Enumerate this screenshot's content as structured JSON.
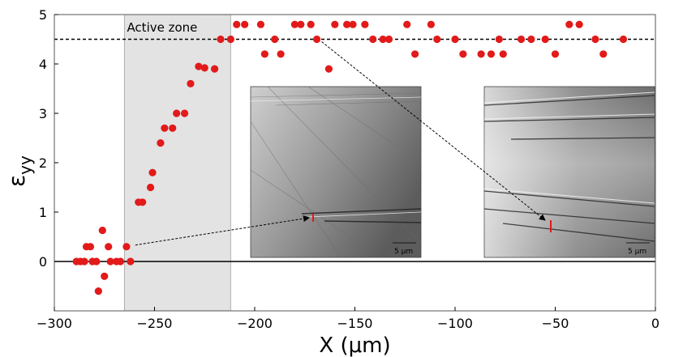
{
  "chart_data": {
    "type": "scatter",
    "xlabel": "X  (μm)",
    "ylabel_main": "ε",
    "ylabel_sub": "yy",
    "xlim": [
      -300,
      0
    ],
    "ylim": [
      -1,
      5
    ],
    "xticks": [
      -300,
      -250,
      -200,
      -150,
      -100,
      -50,
      0
    ],
    "xtick_labels": [
      "−300",
      "−250",
      "−200",
      "−150",
      "−100",
      "−50",
      "0"
    ],
    "yticks": [
      0,
      1,
      2,
      3,
      4,
      5
    ],
    "ytick_labels": [
      "0",
      "1",
      "2",
      "3",
      "4",
      "5"
    ],
    "marker_color": "#e21a1a",
    "zero_line": 0,
    "dashed_line": 4.5,
    "active_zone": {
      "x_range": [
        -265,
        -212
      ],
      "label": "Active zone",
      "fill": "#e3e3e3"
    },
    "points": [
      {
        "x": -289,
        "y": 0
      },
      {
        "x": -287,
        "y": 0
      },
      {
        "x": -285,
        "y": 0
      },
      {
        "x": -284,
        "y": 0.3
      },
      {
        "x": -282,
        "y": 0.3
      },
      {
        "x": -281,
        "y": 0
      },
      {
        "x": -279,
        "y": 0
      },
      {
        "x": -278,
        "y": -0.6
      },
      {
        "x": -276,
        "y": 0.63
      },
      {
        "x": -275,
        "y": -0.3
      },
      {
        "x": -273,
        "y": 0.3
      },
      {
        "x": -272,
        "y": 0
      },
      {
        "x": -269,
        "y": 0
      },
      {
        "x": -267,
        "y": 0
      },
      {
        "x": -264,
        "y": 0.3
      },
      {
        "x": -262,
        "y": 0
      },
      {
        "x": -258,
        "y": 1.2
      },
      {
        "x": -256,
        "y": 1.2
      },
      {
        "x": -252,
        "y": 1.5
      },
      {
        "x": -251,
        "y": 1.8
      },
      {
        "x": -247,
        "y": 2.4
      },
      {
        "x": -245,
        "y": 2.7
      },
      {
        "x": -241,
        "y": 2.7
      },
      {
        "x": -239,
        "y": 3.0
      },
      {
        "x": -235,
        "y": 3.0
      },
      {
        "x": -232,
        "y": 3.6
      },
      {
        "x": -228,
        "y": 3.95
      },
      {
        "x": -225,
        "y": 3.92
      },
      {
        "x": -220,
        "y": 3.9
      },
      {
        "x": -217,
        "y": 4.5
      },
      {
        "x": -212,
        "y": 4.5
      },
      {
        "x": -209,
        "y": 4.8
      },
      {
        "x": -205,
        "y": 4.8
      },
      {
        "x": -197,
        "y": 4.8
      },
      {
        "x": -195,
        "y": 4.2
      },
      {
        "x": -190,
        "y": 4.5
      },
      {
        "x": -187,
        "y": 4.2
      },
      {
        "x": -180,
        "y": 4.8
      },
      {
        "x": -177,
        "y": 4.8
      },
      {
        "x": -172,
        "y": 4.8
      },
      {
        "x": -169,
        "y": 4.5
      },
      {
        "x": -163,
        "y": 3.9
      },
      {
        "x": -160,
        "y": 4.8
      },
      {
        "x": -154,
        "y": 4.8
      },
      {
        "x": -151,
        "y": 4.8
      },
      {
        "x": -145,
        "y": 4.8
      },
      {
        "x": -141,
        "y": 4.5
      },
      {
        "x": -136,
        "y": 4.5
      },
      {
        "x": -133,
        "y": 4.5
      },
      {
        "x": -124,
        "y": 4.8
      },
      {
        "x": -120,
        "y": 4.2
      },
      {
        "x": -112,
        "y": 4.8
      },
      {
        "x": -109,
        "y": 4.5
      },
      {
        "x": -100,
        "y": 4.5
      },
      {
        "x": -96,
        "y": 4.2
      },
      {
        "x": -87,
        "y": 4.2
      },
      {
        "x": -82,
        "y": 4.2
      },
      {
        "x": -78,
        "y": 4.5
      },
      {
        "x": -76,
        "y": 4.2
      },
      {
        "x": -67,
        "y": 4.5
      },
      {
        "x": -62,
        "y": 4.5
      },
      {
        "x": -55,
        "y": 4.5
      },
      {
        "x": -50,
        "y": 4.2
      },
      {
        "x": -43,
        "y": 4.8
      },
      {
        "x": -38,
        "y": 4.8
      },
      {
        "x": -30,
        "y": 4.5
      },
      {
        "x": -26,
        "y": 4.2
      },
      {
        "x": -16,
        "y": 4.5
      }
    ],
    "insets": [
      {
        "name": "inset-left",
        "scale_label": "5 μm"
      },
      {
        "name": "inset-right",
        "scale_label": "5 μm"
      }
    ],
    "arrows": [
      {
        "from": {
          "x": -262,
          "y": 0.3
        },
        "to_inset": 0
      },
      {
        "from": {
          "x": -169,
          "y": 4.5
        },
        "to_inset": 1
      }
    ]
  }
}
